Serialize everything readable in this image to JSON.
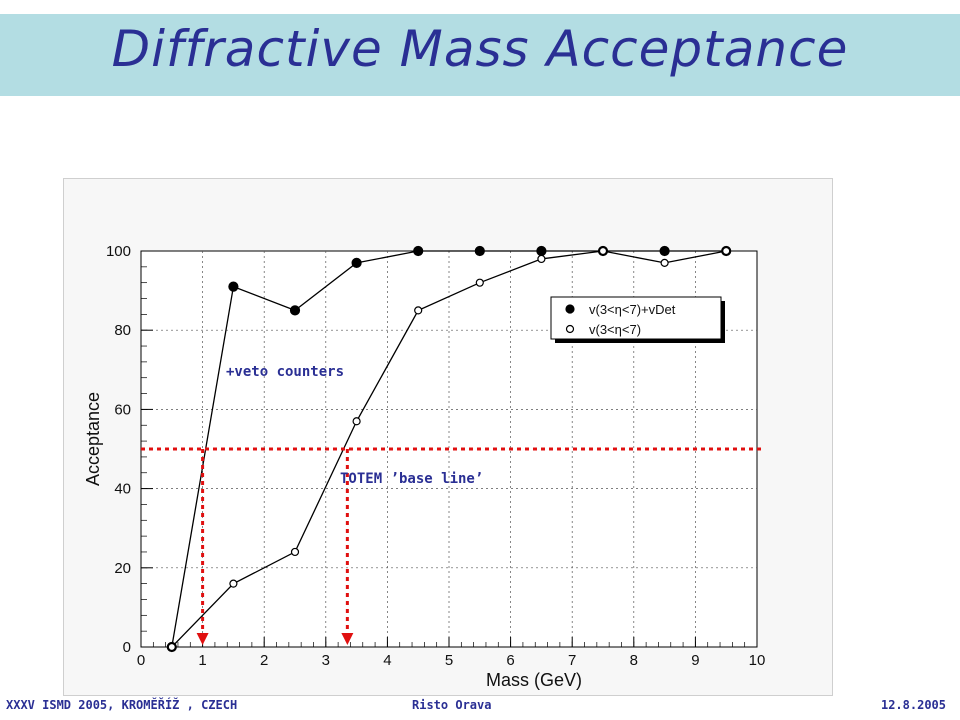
{
  "slide": {
    "title": "Diffractive Mass Acceptance"
  },
  "footer": {
    "conference": "XXXV ISMD 2005, KROMĚŘÍŽ , CZECH",
    "author": "Risto Orava",
    "date": "12.8.2005"
  },
  "chart_data": {
    "type": "line",
    "xlabel": "Mass  (GeV)",
    "ylabel": "Acceptance",
    "xlim": [
      0,
      10
    ],
    "ylim": [
      0,
      100
    ],
    "xticks": [
      0,
      1,
      2,
      3,
      4,
      5,
      6,
      7,
      8,
      9,
      10
    ],
    "yticks": [
      0,
      20,
      40,
      60,
      80,
      100
    ],
    "grid": true,
    "legend_position": "top-right",
    "series": [
      {
        "name": "v(3<η<7)+vDet",
        "marker": "filled-circle",
        "x": [
          0.5,
          1.5,
          2.5,
          3.5,
          4.5,
          5.5,
          6.5,
          7.5,
          8.5,
          9.5
        ],
        "y": [
          0,
          91,
          85,
          97,
          100,
          100,
          100,
          100,
          100,
          100
        ]
      },
      {
        "name": "v(3<η<7)",
        "marker": "open-circle",
        "x": [
          0.5,
          1.5,
          2.5,
          3.5,
          4.5,
          5.5,
          6.5,
          7.5,
          8.5,
          9.5
        ],
        "y": [
          0,
          16,
          24,
          57,
          85,
          92,
          98,
          100,
          97,
          100
        ]
      }
    ],
    "annotations": [
      {
        "text": "+veto counters"
      },
      {
        "text": "TOTEM ’base line’"
      }
    ],
    "reference_lines": {
      "horizontal_y": 50,
      "vertical_x": [
        1.0,
        3.35
      ],
      "color": "#e01010"
    }
  }
}
